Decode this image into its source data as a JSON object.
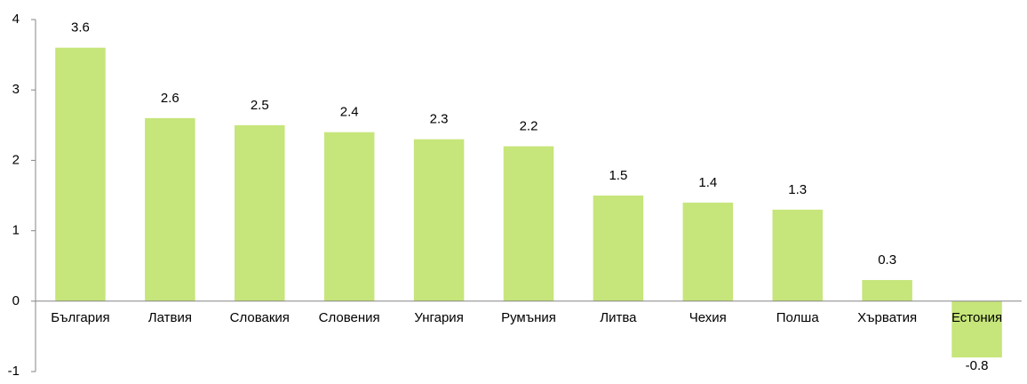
{
  "chart_data": {
    "type": "bar",
    "categories": [
      "България",
      "Латвия",
      "Словакия",
      "Словения",
      "Унгария",
      "Румъния",
      "Литва",
      "Чехия",
      "Полша",
      "Хърватия",
      "Естония"
    ],
    "values": [
      3.6,
      2.6,
      2.5,
      2.4,
      2.3,
      2.2,
      1.5,
      1.4,
      1.3,
      0.3,
      -0.8
    ],
    "color": "#c6e57a",
    "ylim": [
      -1,
      4
    ],
    "yticks": [
      -1,
      0,
      1,
      2,
      3,
      4
    ],
    "grid": false
  }
}
